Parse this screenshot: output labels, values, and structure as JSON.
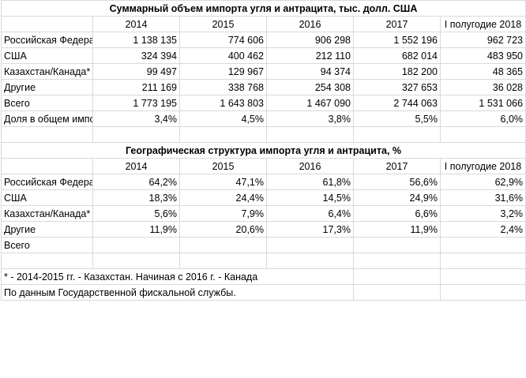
{
  "table1": {
    "title": "Суммарный объем импорта угля и антрацита, тыс. долл. США",
    "headers": [
      "2014",
      "2015",
      "2016",
      "2017",
      "I полугодие 2018"
    ],
    "rows": [
      {
        "label": "Российская Федерация",
        "values": [
          "1 138 135",
          "774 606",
          "906 298",
          "1 552 196",
          "962 723"
        ]
      },
      {
        "label": "США",
        "values": [
          "324 394",
          "400 462",
          "212 110",
          "682 014",
          "483 950"
        ]
      },
      {
        "label": "Казахстан/Канада*",
        "values": [
          "99 497",
          "129 967",
          "94 374",
          "182 200",
          "48 365"
        ]
      },
      {
        "label": "Другие",
        "values": [
          "211 169",
          "338 768",
          "254 308",
          "327 653",
          "36 028"
        ]
      },
      {
        "label": "Всего",
        "values": [
          "1 773 195",
          "1 643 803",
          "1 467 090",
          "2 744 063",
          "1 531 066"
        ]
      }
    ],
    "share_row": {
      "label": "Доля в общем импорте",
      "values": [
        "3,4%",
        "4,5%",
        "3,8%",
        "5,5%",
        "6,0%"
      ]
    }
  },
  "table2": {
    "title": "Географическая структура  импорта угля и антрацита, %",
    "headers": [
      "2014",
      "2015",
      "2016",
      "2017",
      "I полугодие 2018"
    ],
    "rows": [
      {
        "label": "Российская Федерация",
        "values": [
          "64,2%",
          "47,1%",
          "61,8%",
          "56,6%",
          "62,9%"
        ]
      },
      {
        "label": "США",
        "values": [
          "18,3%",
          "24,4%",
          "14,5%",
          "24,9%",
          "31,6%"
        ]
      },
      {
        "label": "Казахстан/Канада*",
        "values": [
          "5,6%",
          "7,9%",
          "6,4%",
          "6,6%",
          "3,2%"
        ]
      },
      {
        "label": "Другие",
        "values": [
          "11,9%",
          "20,6%",
          "17,3%",
          "11,9%",
          "2,4%"
        ]
      },
      {
        "label": "Всего",
        "values": [
          "",
          "",
          "",
          "",
          ""
        ]
      }
    ]
  },
  "footnotes": {
    "note1": "* - 2014-2015 гг. - Казахстан. Начиная с 2016 г. - Канада",
    "note2": "По данным Государственной фискальной службы."
  }
}
